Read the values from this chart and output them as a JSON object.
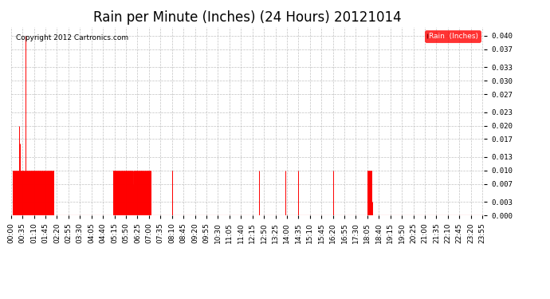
{
  "title": "Rain per Minute (Inches) (24 Hours) 20121014",
  "copyright": "Copyright 2012 Cartronics.com",
  "legend_label": "Rain  (Inches)",
  "ylim": [
    0.0,
    0.042
  ],
  "yticks": [
    0.0,
    0.003,
    0.007,
    0.01,
    0.013,
    0.017,
    0.02,
    0.023,
    0.027,
    0.03,
    0.033,
    0.037,
    0.04
  ],
  "background_color": "#ffffff",
  "bar_color": "#ff0000",
  "baseline_color": "#ff0000",
  "grid_color": "#bbbbbb",
  "title_fontsize": 12,
  "tick_fontsize": 6.5,
  "total_minutes": 1440,
  "xtick_positions": [
    0,
    35,
    70,
    105,
    140,
    175,
    210,
    245,
    280,
    315,
    350,
    385,
    420,
    455,
    490,
    525,
    560,
    595,
    630,
    665,
    700,
    735,
    770,
    805,
    840,
    875,
    910,
    945,
    980,
    1015,
    1050,
    1085,
    1120,
    1155,
    1190,
    1225,
    1260,
    1295,
    1330,
    1365,
    1400,
    1435
  ],
  "xtick_labels": [
    "00:00",
    "00:35",
    "01:10",
    "01:45",
    "02:20",
    "02:55",
    "03:30",
    "04:05",
    "04:40",
    "05:15",
    "05:50",
    "06:25",
    "07:00",
    "07:35",
    "08:10",
    "08:45",
    "09:20",
    "09:55",
    "10:30",
    "11:05",
    "11:40",
    "12:15",
    "12:50",
    "13:25",
    "14:00",
    "14:35",
    "15:10",
    "15:45",
    "16:20",
    "16:55",
    "17:30",
    "18:05",
    "18:40",
    "19:15",
    "19:50",
    "20:25",
    "21:00",
    "21:35",
    "22:10",
    "22:45",
    "23:20",
    "23:55"
  ],
  "rain_spikes": [
    [
      5,
      0.01
    ],
    [
      6,
      0.01
    ],
    [
      7,
      0.01
    ],
    [
      8,
      0.01
    ],
    [
      9,
      0.01
    ],
    [
      10,
      0.01
    ],
    [
      11,
      0.01
    ],
    [
      12,
      0.01
    ],
    [
      13,
      0.01
    ],
    [
      14,
      0.01
    ],
    [
      15,
      0.01
    ],
    [
      16,
      0.01
    ],
    [
      17,
      0.01
    ],
    [
      18,
      0.01
    ],
    [
      19,
      0.01
    ],
    [
      20,
      0.01
    ],
    [
      21,
      0.01
    ],
    [
      22,
      0.01
    ],
    [
      23,
      0.01
    ],
    [
      24,
      0.01
    ],
    [
      25,
      0.02
    ],
    [
      26,
      0.016
    ],
    [
      27,
      0.01
    ],
    [
      28,
      0.01
    ],
    [
      29,
      0.01
    ],
    [
      30,
      0.01
    ],
    [
      31,
      0.01
    ],
    [
      32,
      0.01
    ],
    [
      33,
      0.01
    ],
    [
      34,
      0.01
    ],
    [
      35,
      0.01
    ],
    [
      36,
      0.01
    ],
    [
      37,
      0.01
    ],
    [
      38,
      0.01
    ],
    [
      39,
      0.01
    ],
    [
      40,
      0.01
    ],
    [
      41,
      0.01
    ],
    [
      42,
      0.01
    ],
    [
      43,
      0.01
    ],
    [
      44,
      0.01
    ],
    [
      45,
      0.04
    ],
    [
      46,
      0.01
    ],
    [
      47,
      0.01
    ],
    [
      48,
      0.01
    ],
    [
      49,
      0.01
    ],
    [
      50,
      0.01
    ],
    [
      51,
      0.01
    ],
    [
      52,
      0.01
    ],
    [
      53,
      0.01
    ],
    [
      54,
      0.01
    ],
    [
      55,
      0.01
    ],
    [
      56,
      0.01
    ],
    [
      57,
      0.01
    ],
    [
      58,
      0.01
    ],
    [
      59,
      0.01
    ],
    [
      60,
      0.01
    ],
    [
      61,
      0.01
    ],
    [
      62,
      0.01
    ],
    [
      63,
      0.01
    ],
    [
      64,
      0.01
    ],
    [
      65,
      0.01
    ],
    [
      66,
      0.01
    ],
    [
      67,
      0.01
    ],
    [
      68,
      0.01
    ],
    [
      69,
      0.01
    ],
    [
      70,
      0.01
    ],
    [
      71,
      0.01
    ],
    [
      72,
      0.01
    ],
    [
      73,
      0.01
    ],
    [
      74,
      0.01
    ],
    [
      75,
      0.01
    ],
    [
      76,
      0.01
    ],
    [
      77,
      0.01
    ],
    [
      78,
      0.01
    ],
    [
      79,
      0.01
    ],
    [
      80,
      0.01
    ],
    [
      81,
      0.01
    ],
    [
      82,
      0.01
    ],
    [
      83,
      0.01
    ],
    [
      84,
      0.01
    ],
    [
      85,
      0.01
    ],
    [
      86,
      0.01
    ],
    [
      87,
      0.01
    ],
    [
      88,
      0.01
    ],
    [
      89,
      0.01
    ],
    [
      90,
      0.01
    ],
    [
      91,
      0.01
    ],
    [
      92,
      0.01
    ],
    [
      93,
      0.01
    ],
    [
      94,
      0.01
    ],
    [
      95,
      0.01
    ],
    [
      96,
      0.01
    ],
    [
      97,
      0.01
    ],
    [
      98,
      0.01
    ],
    [
      99,
      0.01
    ],
    [
      100,
      0.01
    ],
    [
      101,
      0.01
    ],
    [
      102,
      0.01
    ],
    [
      103,
      0.01
    ],
    [
      104,
      0.01
    ],
    [
      105,
      0.007
    ],
    [
      106,
      0.01
    ],
    [
      107,
      0.01
    ],
    [
      108,
      0.01
    ],
    [
      109,
      0.01
    ],
    [
      110,
      0.01
    ],
    [
      111,
      0.01
    ],
    [
      112,
      0.01
    ],
    [
      113,
      0.01
    ],
    [
      114,
      0.01
    ],
    [
      115,
      0.01
    ],
    [
      116,
      0.01
    ],
    [
      117,
      0.01
    ],
    [
      118,
      0.01
    ],
    [
      119,
      0.01
    ],
    [
      120,
      0.01
    ],
    [
      121,
      0.01
    ],
    [
      122,
      0.01
    ],
    [
      123,
      0.01
    ],
    [
      124,
      0.01
    ],
    [
      125,
      0.01
    ],
    [
      126,
      0.01
    ],
    [
      127,
      0.01
    ],
    [
      128,
      0.01
    ],
    [
      129,
      0.01
    ],
    [
      130,
      0.01
    ],
    [
      310,
      0.01
    ],
    [
      311,
      0.01
    ],
    [
      312,
      0.01
    ],
    [
      313,
      0.01
    ],
    [
      314,
      0.01
    ],
    [
      315,
      0.01
    ],
    [
      316,
      0.01
    ],
    [
      317,
      0.01
    ],
    [
      318,
      0.01
    ],
    [
      319,
      0.01
    ],
    [
      320,
      0.01
    ],
    [
      321,
      0.01
    ],
    [
      322,
      0.01
    ],
    [
      323,
      0.01
    ],
    [
      324,
      0.01
    ],
    [
      325,
      0.01
    ],
    [
      326,
      0.01
    ],
    [
      327,
      0.01
    ],
    [
      328,
      0.01
    ],
    [
      329,
      0.01
    ],
    [
      330,
      0.01
    ],
    [
      331,
      0.01
    ],
    [
      332,
      0.01
    ],
    [
      333,
      0.007
    ],
    [
      334,
      0.01
    ],
    [
      335,
      0.01
    ],
    [
      336,
      0.01
    ],
    [
      337,
      0.01
    ],
    [
      338,
      0.01
    ],
    [
      339,
      0.01
    ],
    [
      340,
      0.01
    ],
    [
      341,
      0.01
    ],
    [
      342,
      0.01
    ],
    [
      343,
      0.01
    ],
    [
      344,
      0.01
    ],
    [
      345,
      0.01
    ],
    [
      346,
      0.01
    ],
    [
      347,
      0.01
    ],
    [
      348,
      0.01
    ],
    [
      349,
      0.01
    ],
    [
      350,
      0.01
    ],
    [
      351,
      0.01
    ],
    [
      352,
      0.01
    ],
    [
      353,
      0.01
    ],
    [
      354,
      0.01
    ],
    [
      355,
      0.01
    ],
    [
      356,
      0.01
    ],
    [
      357,
      0.01
    ],
    [
      358,
      0.01
    ],
    [
      359,
      0.01
    ],
    [
      360,
      0.01
    ],
    [
      361,
      0.01
    ],
    [
      362,
      0.01
    ],
    [
      363,
      0.01
    ],
    [
      364,
      0.01
    ],
    [
      365,
      0.01
    ],
    [
      366,
      0.01
    ],
    [
      367,
      0.01
    ],
    [
      368,
      0.01
    ],
    [
      369,
      0.01
    ],
    [
      370,
      0.01
    ],
    [
      371,
      0.01
    ],
    [
      372,
      0.007
    ],
    [
      373,
      0.01
    ],
    [
      374,
      0.01
    ],
    [
      375,
      0.01
    ],
    [
      376,
      0.01
    ],
    [
      377,
      0.01
    ],
    [
      378,
      0.01
    ],
    [
      379,
      0.01
    ],
    [
      380,
      0.01
    ],
    [
      381,
      0.01
    ],
    [
      382,
      0.01
    ],
    [
      383,
      0.01
    ],
    [
      384,
      0.01
    ],
    [
      385,
      0.01
    ],
    [
      386,
      0.01
    ],
    [
      387,
      0.01
    ],
    [
      388,
      0.01
    ],
    [
      389,
      0.01
    ],
    [
      390,
      0.01
    ],
    [
      391,
      0.01
    ],
    [
      392,
      0.01
    ],
    [
      393,
      0.01
    ],
    [
      394,
      0.01
    ],
    [
      395,
      0.01
    ],
    [
      396,
      0.01
    ],
    [
      397,
      0.01
    ],
    [
      398,
      0.01
    ],
    [
      399,
      0.01
    ],
    [
      400,
      0.01
    ],
    [
      401,
      0.01
    ],
    [
      402,
      0.01
    ],
    [
      403,
      0.01
    ],
    [
      404,
      0.01
    ],
    [
      405,
      0.01
    ],
    [
      406,
      0.01
    ],
    [
      407,
      0.01
    ],
    [
      408,
      0.01
    ],
    [
      409,
      0.01
    ],
    [
      410,
      0.01
    ],
    [
      411,
      0.01
    ],
    [
      412,
      0.01
    ],
    [
      413,
      0.01
    ],
    [
      414,
      0.01
    ],
    [
      415,
      0.01
    ],
    [
      416,
      0.01
    ],
    [
      417,
      0.01
    ],
    [
      418,
      0.01
    ],
    [
      419,
      0.01
    ],
    [
      420,
      0.01
    ],
    [
      421,
      0.01
    ],
    [
      422,
      0.01
    ],
    [
      423,
      0.01
    ],
    [
      424,
      0.01
    ],
    [
      425,
      0.01
    ],
    [
      490,
      0.01
    ],
    [
      491,
      0.01
    ],
    [
      755,
      0.01
    ],
    [
      756,
      0.003
    ],
    [
      835,
      0.01
    ],
    [
      875,
      0.01
    ],
    [
      980,
      0.01
    ],
    [
      1085,
      0.01
    ],
    [
      1086,
      0.01
    ],
    [
      1087,
      0.01
    ],
    [
      1088,
      0.01
    ],
    [
      1089,
      0.01
    ],
    [
      1090,
      0.01
    ],
    [
      1091,
      0.01
    ],
    [
      1092,
      0.01
    ],
    [
      1093,
      0.01
    ],
    [
      1094,
      0.01
    ],
    [
      1095,
      0.01
    ],
    [
      1096,
      0.01
    ],
    [
      1097,
      0.01
    ],
    [
      1098,
      0.01
    ],
    [
      1099,
      0.003
    ]
  ]
}
